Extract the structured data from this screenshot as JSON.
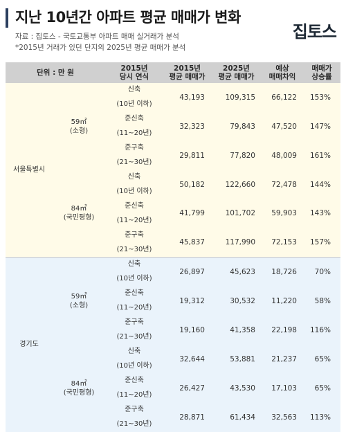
{
  "header": {
    "title": "지난 10년간 아파트 평균 매매가 변화",
    "source": "자료 : 집토스 - 국토교통부 아파트 매매 실거래가 분석",
    "note": "*2015년 거래가 있던 단지의 2025년 평균 매매가 분석",
    "logo_text": "집토스"
  },
  "table": {
    "headers": {
      "unit": "단위 : 만 원",
      "age_line1": "2015년",
      "age_line2": "당시 연식",
      "p2015_line1": "2015년",
      "p2015_line2": "평균 매매가",
      "p2025_line1": "2025년",
      "p2025_line2": "평균 매매가",
      "diff_line1": "예상",
      "diff_line2": "매매차익",
      "rate_line1": "매매가",
      "rate_line2": "상승률"
    },
    "regions": [
      {
        "name": "서울특별시",
        "sizes": [
          {
            "line1": "59㎡",
            "line2": "(소형)",
            "rows": [
              {
                "type1": "신축",
                "type2": "(10년 이하)",
                "p2015": "43,193",
                "p2025": "109,315",
                "diff": "66,122",
                "rate": "153%"
              },
              {
                "type1": "준신축",
                "type2": "(11~20년)",
                "p2015": "32,323",
                "p2025": "79,843",
                "diff": "47,520",
                "rate": "147%"
              },
              {
                "type1": "준구축",
                "type2": "(21~30년)",
                "p2015": "29,811",
                "p2025": "77,820",
                "diff": "48,009",
                "rate": "161%"
              }
            ]
          },
          {
            "line1": "84㎡",
            "line2": "(국민평형)",
            "rows": [
              {
                "type1": "신축",
                "type2": "(10년 이하)",
                "p2015": "50,182",
                "p2025": "122,660",
                "diff": "72,478",
                "rate": "144%"
              },
              {
                "type1": "준신축",
                "type2": "(11~20년)",
                "p2015": "41,799",
                "p2025": "101,702",
                "diff": "59,903",
                "rate": "143%"
              },
              {
                "type1": "준구축",
                "type2": "(21~30년)",
                "p2015": "45,837",
                "p2025": "117,990",
                "diff": "72,153",
                "rate": "157%"
              }
            ]
          }
        ]
      },
      {
        "name": "경기도",
        "sizes": [
          {
            "line1": "59㎡",
            "line2": "(소형)",
            "rows": [
              {
                "type1": "신축",
                "type2": "(10년 이하)",
                "p2015": "26,897",
                "p2025": "45,623",
                "diff": "18,726",
                "rate": "70%"
              },
              {
                "type1": "준신축",
                "type2": "(11~20년)",
                "p2015": "19,312",
                "p2025": "30,532",
                "diff": "11,220",
                "rate": "58%"
              },
              {
                "type1": "준구축",
                "type2": "(21~30년)",
                "p2015": "19,160",
                "p2025": "41,358",
                "diff": "22,198",
                "rate": "116%"
              }
            ]
          },
          {
            "line1": "84㎡",
            "line2": "(국민평형)",
            "rows": [
              {
                "type1": "신축",
                "type2": "(10년 이하)",
                "p2015": "32,644",
                "p2025": "53,881",
                "diff": "21,237",
                "rate": "65%"
              },
              {
                "type1": "준신축",
                "type2": "(11~20년)",
                "p2015": "26,427",
                "p2025": "43,530",
                "diff": "17,103",
                "rate": "65%"
              },
              {
                "type1": "준구축",
                "type2": "(21~30년)",
                "p2015": "28,871",
                "p2025": "61,434",
                "diff": "32,563",
                "rate": "113%"
              }
            ]
          }
        ]
      }
    ]
  }
}
